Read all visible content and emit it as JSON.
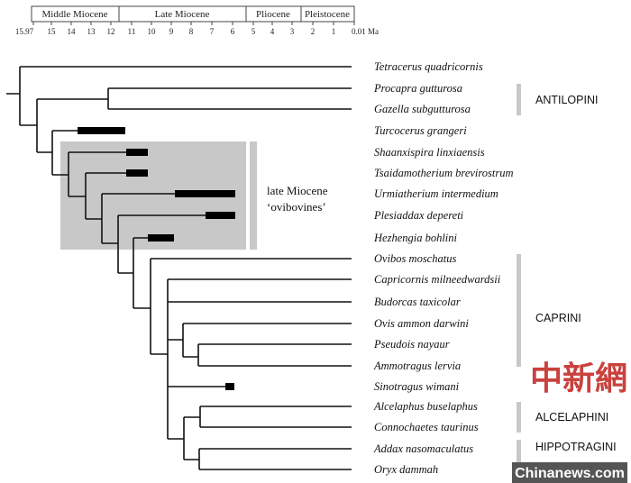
{
  "timescale": {
    "epochs": [
      "Middle Miocene",
      "Late Miocene",
      "Pliocene",
      "Pleistocene"
    ],
    "ticks": [
      "15.97",
      "15",
      "14",
      "13",
      "12",
      "11",
      "10",
      "9",
      "8",
      "7",
      "6",
      "5",
      "4",
      "3",
      "2",
      "1",
      "0.01 Ma"
    ]
  },
  "taxa": [
    "Tetracerus quadricornis",
    "Procapra gutturosa",
    "Gazella subgutturosa",
    "Turcocerus grangeri",
    "Shaanxispira linxiaensis",
    "Tsaidamotherium brevirostrum",
    "Urmiatherium intermedium",
    "Plesiaddax depereti",
    "Hezhengia bohlini",
    "Ovibos moschatus",
    "Capricornis milneedwardsii",
    "Budorcas taxicolar",
    "Ovis ammon darwini",
    "Pseudois nayaur",
    "Ammotragus lervia",
    "Sinotragus wimani",
    "Alcelaphus buselaphus",
    "Connochaetes taurinus",
    "Addax nasomaculatus",
    "Oryx dammah"
  ],
  "group_label": {
    "line1": "late Miocene",
    "line2": "‘ovibovines’"
  },
  "tribes": [
    "ANTILOPINI",
    "CAPRINI",
    "ALCELAPHINI",
    "HIPPOTRAGINI"
  ],
  "watermark": {
    "chinese": "中新網",
    "site": "Chinanews.com"
  },
  "colors": {
    "highlight": "#c8c8c8",
    "tribe_bar": "#c8c8c8"
  }
}
